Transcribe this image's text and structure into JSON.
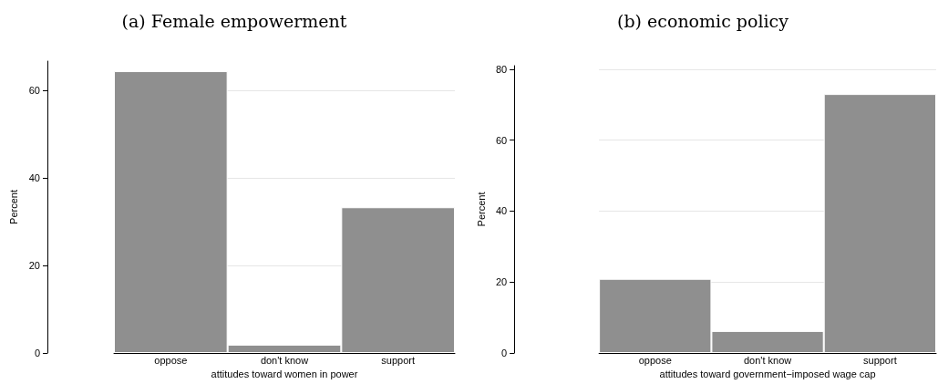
{
  "chart_data": [
    {
      "type": "bar",
      "title": "(a) Female empowerment",
      "xlabel": "attitudes toward women in power",
      "ylabel": "Percent",
      "categories": [
        "oppose",
        "don't know",
        "support"
      ],
      "values": [
        64.4,
        1.9,
        33.3
      ],
      "color": "#8f8f8f",
      "ylim": [
        0,
        66.7
      ],
      "yticks": [
        0,
        20,
        40,
        60
      ],
      "grid": "y"
    },
    {
      "type": "bar",
      "title": "(b) economic policy",
      "xlabel": "attitudes toward government−imposed wage cap",
      "ylabel": "Percent",
      "categories": [
        "oppose",
        "don't know",
        "support"
      ],
      "values": [
        20.9,
        6.2,
        73.0
      ],
      "color": "#8f8f8f",
      "ylim": [
        0,
        81
      ],
      "yticks": [
        0,
        20,
        40,
        60,
        80
      ],
      "grid": "y"
    }
  ]
}
